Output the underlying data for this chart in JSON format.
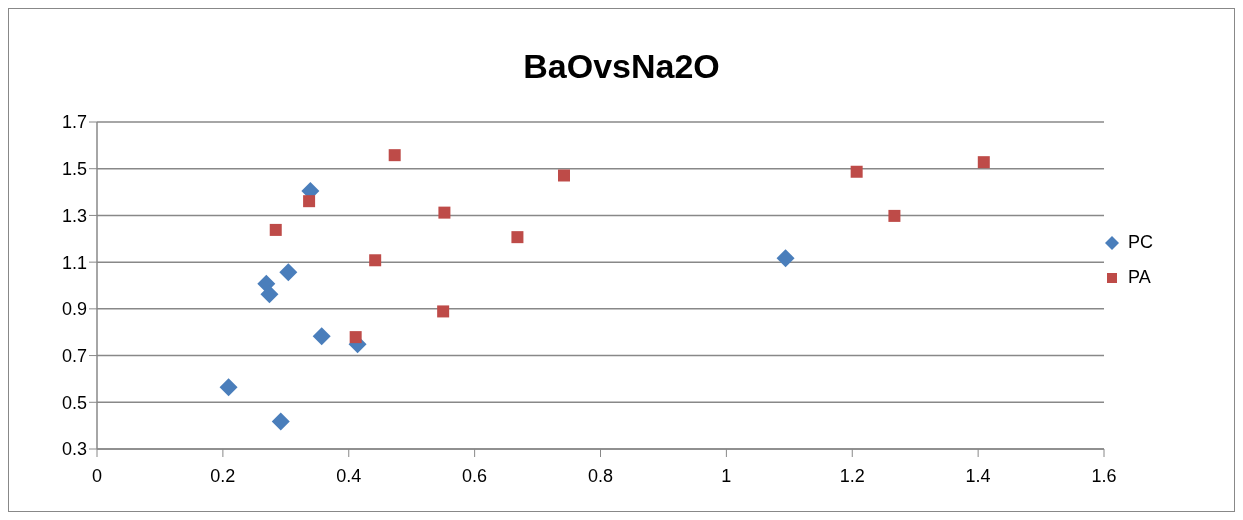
{
  "chart_data": {
    "type": "scatter",
    "title": "BaOvsNa2O",
    "series": [
      {
        "name": "PC",
        "color": "#4a7ebb",
        "marker": "diamond",
        "x": [
          0.209,
          0.269,
          0.274,
          0.304,
          0.292,
          0.339,
          0.357,
          0.414,
          1.094
        ],
        "values": [
          0.564,
          1.007,
          0.963,
          1.057,
          0.418,
          1.405,
          0.783,
          0.749,
          1.117
        ]
      },
      {
        "name": "PA",
        "color": "#be4b48",
        "marker": "square",
        "x": [
          0.473,
          0.337,
          0.284,
          0.552,
          0.442,
          0.55,
          0.411,
          0.668,
          0.742,
          1.207,
          1.267,
          1.409
        ],
        "values": [
          1.558,
          1.361,
          1.238,
          1.312,
          1.108,
          0.889,
          0.779,
          1.207,
          1.471,
          1.487,
          1.298,
          1.528
        ]
      }
    ],
    "xlim": [
      0,
      1.6
    ],
    "xticks": [
      0,
      0.2,
      0.4,
      0.6,
      0.8,
      1,
      1.2,
      1.4,
      1.6
    ],
    "ylim": [
      0.3,
      1.7
    ],
    "yticks": [
      0.3,
      0.5,
      0.7,
      0.9,
      1.1,
      1.3,
      1.5,
      1.7
    ],
    "grid": "y",
    "legend": "right"
  }
}
